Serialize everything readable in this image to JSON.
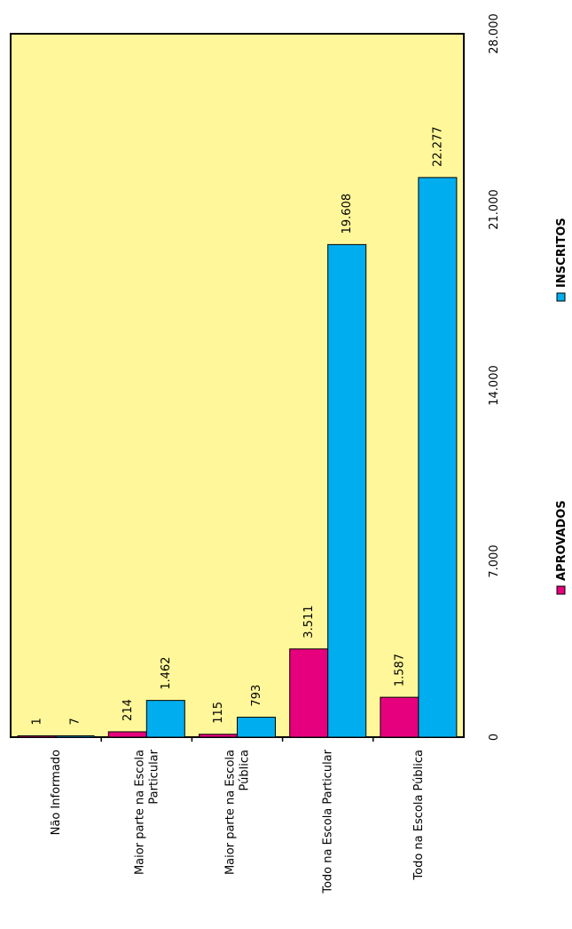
{
  "chart_data": {
    "type": "bar",
    "orientation": "horizontal",
    "rotated": true,
    "categories": [
      [
        "Não Informado"
      ],
      [
        "Maior parte na Escola",
        "Particular"
      ],
      [
        "Maior parte na Escola",
        "Pública"
      ],
      [
        "Todo na Escola Particular"
      ],
      [
        "Todo na Escola Pública"
      ]
    ],
    "series": [
      {
        "name": "APROVADOS",
        "color": "#e6007e",
        "values": [
          1,
          214,
          115,
          3511,
          1587
        ],
        "labels": [
          "1",
          "214",
          "115",
          "3.511",
          "1.587"
        ]
      },
      {
        "name": "INSCRITOS",
        "color": "#00aeef",
        "values": [
          7,
          1462,
          793,
          19608,
          22277
        ],
        "labels": [
          "7",
          "1.462",
          "793",
          "19.608",
          "22.277"
        ]
      }
    ],
    "xlim": [
      0,
      28000
    ],
    "ticks": [
      {
        "value": 0,
        "label": "0"
      },
      {
        "value": 7000,
        "label": "7.000"
      },
      {
        "value": 14000,
        "label": "14.000"
      },
      {
        "value": 21000,
        "label": "21.000"
      },
      {
        "value": 28000,
        "label": "28.000"
      }
    ],
    "plot_background": "#fff799",
    "legend_position": "bottom",
    "grid": false
  }
}
